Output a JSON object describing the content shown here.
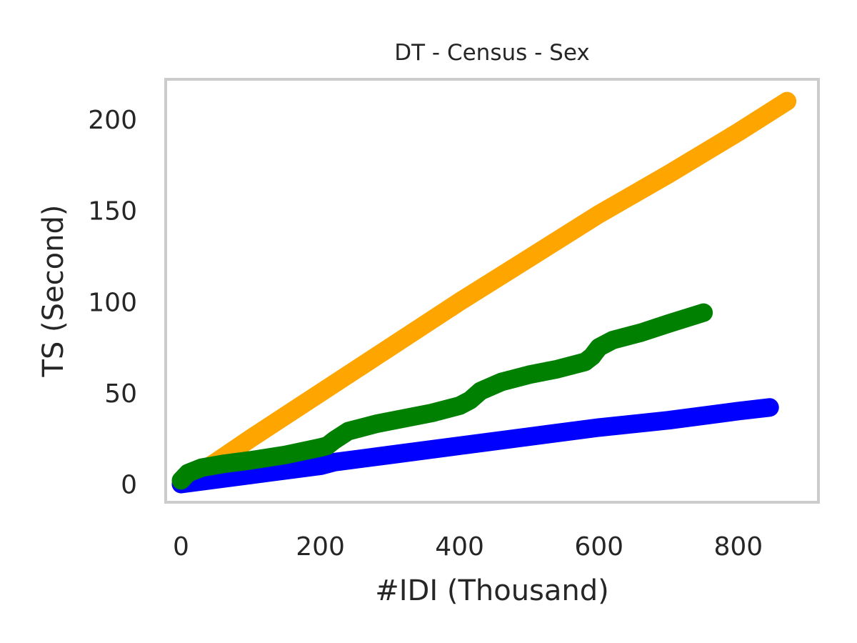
{
  "chart_data": {
    "type": "line",
    "title": "DT - Census - Sex",
    "xlabel": "#IDI (Thousand)",
    "ylabel": "TS (Second)",
    "xlim": [
      -22,
      915
    ],
    "ylim": [
      -10,
      222
    ],
    "xticks": [
      0,
      200,
      400,
      600,
      800
    ],
    "yticks": [
      0,
      50,
      100,
      150,
      200
    ],
    "grid": false,
    "series": [
      {
        "color": "#ffa500",
        "x": [
          0,
          50,
          100,
          200,
          300,
          400,
          500,
          600,
          700,
          800,
          870
        ],
        "y": [
          0,
          12,
          25,
          50,
          75,
          100,
          124,
          148,
          170,
          193,
          210
        ]
      },
      {
        "color": "#0000ff",
        "x": [
          0,
          100,
          200,
          220,
          300,
          400,
          500,
          600,
          700,
          800,
          845
        ],
        "y": [
          0,
          5,
          10,
          12,
          16,
          21,
          26,
          31,
          35,
          40,
          42
        ]
      },
      {
        "color": "#008000",
        "x": [
          0,
          10,
          30,
          60,
          100,
          150,
          200,
          210,
          220,
          240,
          280,
          320,
          360,
          400,
          415,
          430,
          460,
          500,
          540,
          580,
          590,
          600,
          620,
          660,
          700,
          750
        ],
        "y": [
          2,
          6,
          9,
          11,
          13,
          16,
          20,
          21,
          24,
          29,
          33,
          36,
          39,
          43,
          46,
          51,
          56,
          60,
          63,
          67,
          70,
          75,
          79,
          83,
          88,
          94
        ]
      }
    ]
  }
}
